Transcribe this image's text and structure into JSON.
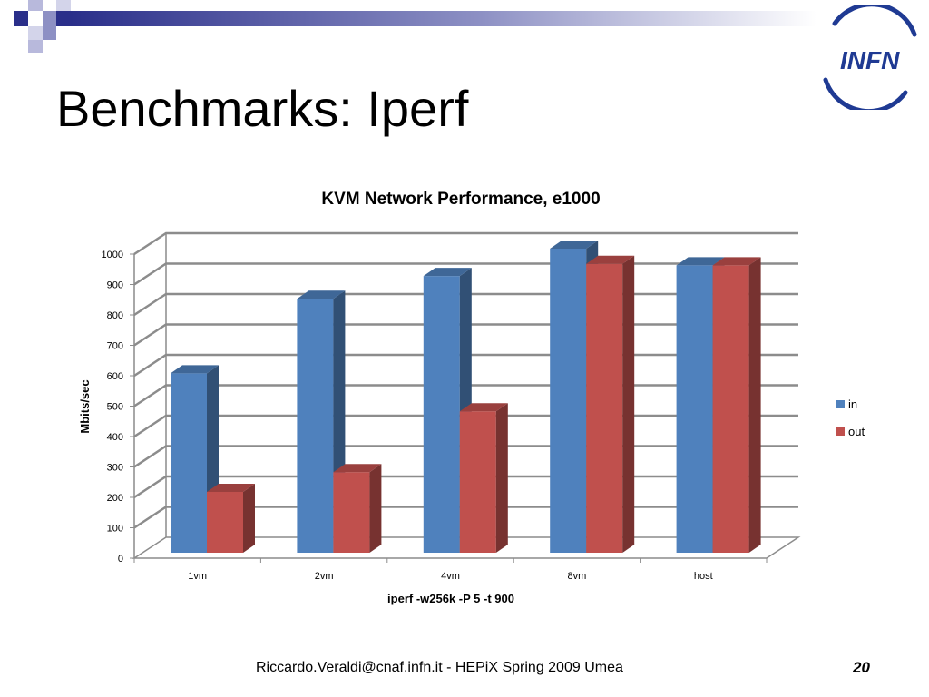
{
  "slide": {
    "title": "Benchmarks: Iperf",
    "footer": "Riccardo.Veraldi@cnaf.infn.it  - HEPiX Spring 2009 Umea",
    "page_number": "20",
    "logo_text": "INFN"
  },
  "colors": {
    "in": "#4f81bd",
    "out": "#c0504d",
    "brand": "#1f3a93",
    "grid": "#8c8c8c"
  },
  "chart_data": {
    "type": "bar",
    "title": "KVM Network Performance, e1000",
    "xlabel": "iperf  -w256k -P 5 -t 900",
    "ylabel": "Mbits/sec",
    "categories": [
      "1vm",
      "2vm",
      "4vm",
      "8vm",
      "host"
    ],
    "series": [
      {
        "name": "in",
        "values": [
          590,
          835,
          910,
          1000,
          945
        ]
      },
      {
        "name": "out",
        "values": [
          200,
          265,
          465,
          950,
          945
        ]
      }
    ],
    "ylim": [
      0,
      1000
    ],
    "yticks": [
      "0",
      "100",
      "200",
      "300",
      "400",
      "500",
      "600",
      "700",
      "800",
      "900",
      "1000"
    ],
    "grid": true,
    "legend": "right",
    "style": "3d-column"
  }
}
